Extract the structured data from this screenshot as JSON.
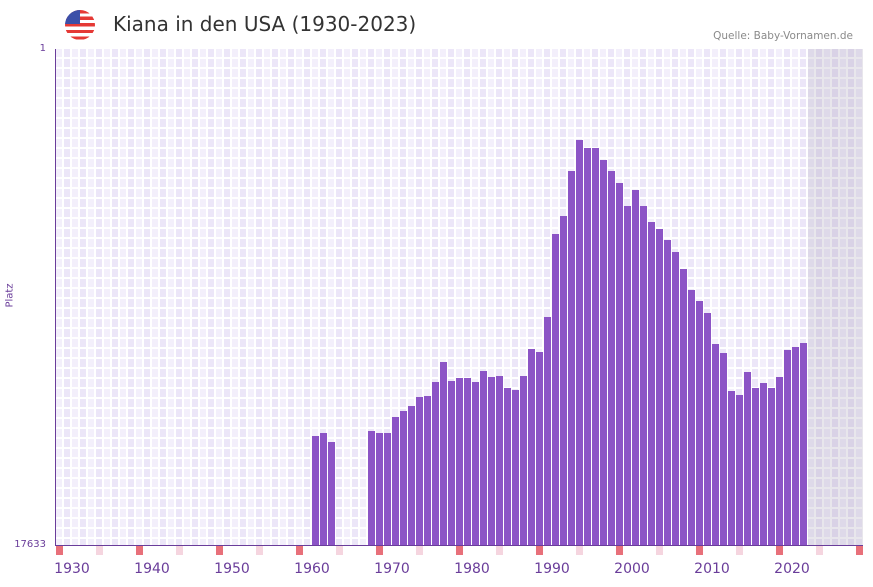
{
  "header": {
    "title": "Kiana in den USA (1930-2023)",
    "source": "Quelle: Baby-Vornamen.de",
    "flag_icon": "us-flag-icon"
  },
  "colors": {
    "bar": "#8c54c6",
    "axis": "#6a3d9a",
    "decade_marker": "#e8707a",
    "half_marker": "#f5d5df"
  },
  "chart_data": {
    "type": "bar",
    "title": "Kiana in den USA (1930-2023)",
    "xlabel": "",
    "ylabel": "Platz",
    "y_scale": "log-inverted",
    "ylim": [
      17633,
      1
    ],
    "ytick_labels": [
      "1",
      "17633"
    ],
    "xlim": [
      1928,
      2028
    ],
    "xtick_labels": [
      "1930",
      "1940",
      "1950",
      "1960",
      "1970",
      "1980",
      "1990",
      "2000",
      "2010",
      "2020"
    ],
    "shaded_from_year": 2022,
    "x": [
      1960,
      1961,
      1962,
      1967,
      1968,
      1969,
      1970,
      1971,
      1972,
      1973,
      1974,
      1975,
      1976,
      1977,
      1978,
      1979,
      1980,
      1981,
      1982,
      1983,
      1984,
      1985,
      1986,
      1987,
      1988,
      1989,
      1990,
      1991,
      1992,
      1993,
      1994,
      1995,
      1996,
      1997,
      1998,
      1999,
      2000,
      2001,
      2002,
      2003,
      2004,
      2005,
      2006,
      2007,
      2008,
      2009,
      2010,
      2011,
      2012,
      2013,
      2014,
      2015,
      2016,
      2017,
      2018,
      2019,
      2020,
      2021
    ],
    "values": [
      2056,
      1940,
      2313,
      1864,
      1940,
      1940,
      1414,
      1257,
      1138,
      953,
      935,
      709,
      478,
      695,
      656,
      656,
      709,
      571,
      643,
      630,
      798,
      830,
      630,
      370,
      393,
      197,
      38,
      27,
      11,
      6,
      7,
      7,
      9,
      11,
      14,
      22,
      16,
      22,
      30,
      35,
      43,
      55,
      76,
      116,
      144,
      182,
      335,
      401,
      847,
      917,
      582,
      798,
      723,
      798,
      643,
      378,
      356,
      329
    ]
  }
}
